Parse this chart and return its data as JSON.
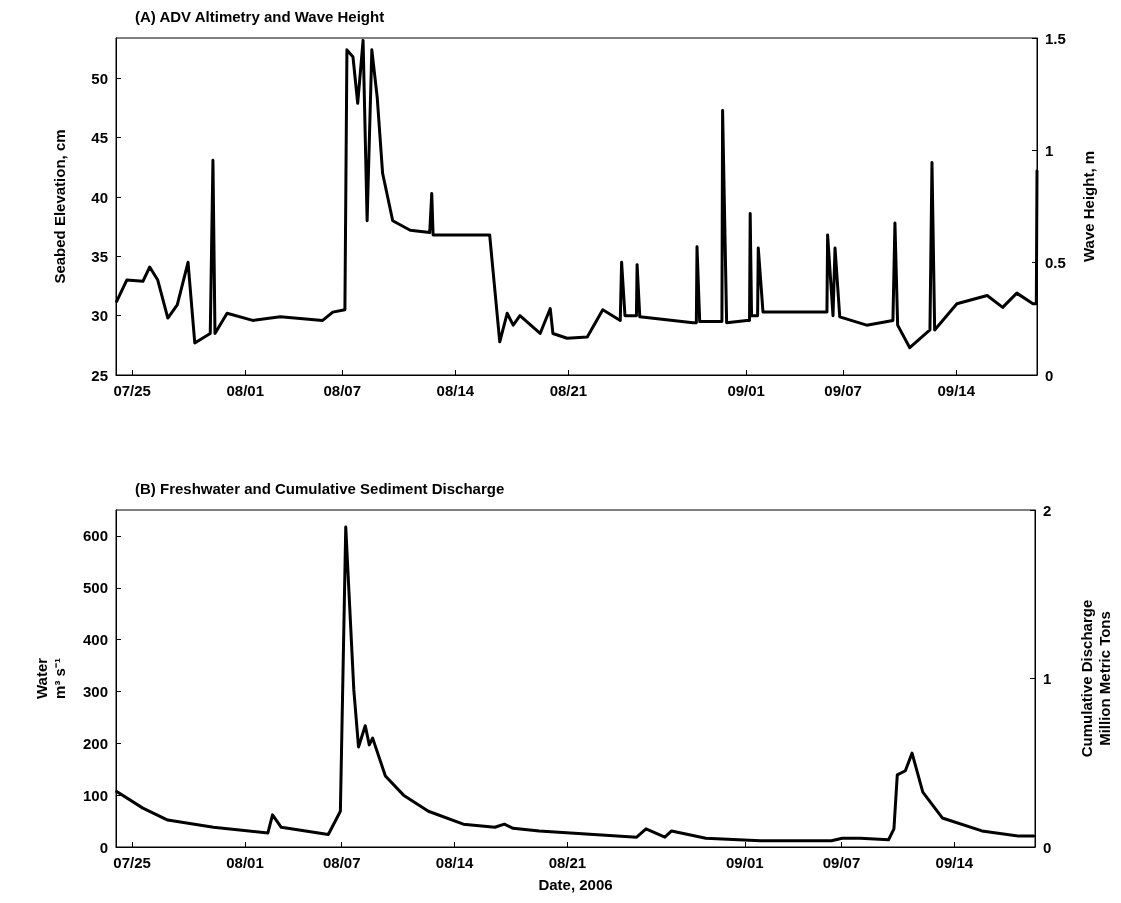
{
  "chart_data": [
    {
      "type": "line",
      "title": "(A) ADV Altimetry and Wave Height",
      "ylabel": "Seabed Elevation, cm",
      "y2label": "Wave Height, m",
      "color": "#000000",
      "line_style": "solid",
      "marker": "none",
      "xlim": [
        "2006-07-24",
        "2006-09-19"
      ],
      "xticks": [
        {
          "value": "2006-07-25",
          "label": "07/25"
        },
        {
          "value": "2006-08-01",
          "label": "08/01"
        },
        {
          "value": "2006-08-07",
          "label": "08/07"
        },
        {
          "value": "2006-08-14",
          "label": "08/14"
        },
        {
          "value": "2006-08-21",
          "label": "08/21"
        },
        {
          "value": "2006-09-01",
          "label": "09/01"
        },
        {
          "value": "2006-09-07",
          "label": "09/07"
        },
        {
          "value": "2006-09-14",
          "label": "09/14"
        }
      ],
      "ylim": [
        25,
        53.4
      ],
      "yticks": [
        25,
        30,
        35,
        40,
        45,
        50
      ],
      "y2lim": [
        0,
        1.5
      ],
      "y2ticks": [
        0,
        0.5,
        1,
        1.5
      ],
      "x": [
        "2006-07-24T01:00",
        "2006-07-24T16:00",
        "2006-07-25T16:00",
        "2006-07-26T02:00",
        "2006-07-26T14:00",
        "2006-07-27T05:00",
        "2006-07-27T19:00",
        "2006-07-28T11:00",
        "2006-07-28T21:00",
        "2006-07-29T20:00",
        "2006-07-30T00:00",
        "2006-07-30T03:00",
        "2006-07-30T21:00",
        "2006-08-01T11:00",
        "2006-08-03T04:00",
        "2006-08-05T19:00",
        "2006-08-06T10:00",
        "2006-08-07T04:00",
        "2006-08-07T07:00",
        "2006-08-07T16:00",
        "2006-08-07T23:00",
        "2006-08-08T07:00",
        "2006-08-08T13:00",
        "2006-08-08T20:00",
        "2006-08-09T04:00",
        "2006-08-09T12:00",
        "2006-08-10T03:00",
        "2006-08-11T05:00",
        "2006-08-12T10:00",
        "2006-08-12T13:00",
        "2006-08-12T15:00",
        "2006-08-16T03:00",
        "2006-08-16T18:00",
        "2006-08-17T05:00",
        "2006-08-17T14:00",
        "2006-08-18T00:00",
        "2006-08-19T06:00",
        "2006-08-19T21:00",
        "2006-08-20T01:00",
        "2006-08-20T22:00",
        "2006-08-22T04:00",
        "2006-08-23T03:00",
        "2006-08-24T05:00",
        "2006-08-24T07:00",
        "2006-08-24T12:00",
        "2006-08-25T05:00",
        "2006-08-25T06:00",
        "2006-08-25T10:00",
        "2006-08-28T17:00",
        "2006-08-28T22:00",
        "2006-08-28T23:00",
        "2006-08-29T03:00",
        "2006-08-30T12:00",
        "2006-08-30T13:00",
        "2006-08-30T19:00",
        "2006-09-01T01:00",
        "2006-09-01T05:00",
        "2006-09-01T06:00",
        "2006-09-01T08:00",
        "2006-09-01T17:00",
        "2006-09-01T18:00",
        "2006-09-02T01:00",
        "2006-09-06T00:00",
        "2006-09-06T01:00",
        "2006-09-06T09:00",
        "2006-09-06T12:00",
        "2006-09-06T19:00",
        "2006-09-08T11:00",
        "2006-09-10T02:00",
        "2006-09-10T05:00",
        "2006-09-10T09:00",
        "2006-09-11T03:00",
        "2006-09-12T09:00",
        "2006-09-12T12:00",
        "2006-09-12T16:00",
        "2006-09-14T01:00",
        "2006-09-15T22:00",
        "2006-09-16T21:00",
        "2006-09-17T18:00",
        "2006-09-18T18:00",
        "2006-09-18T23:00",
        "2006-09-19T00:00"
      ],
      "values": [
        31.2,
        33.0,
        32.9,
        34.1,
        33.0,
        29.8,
        30.9,
        34.5,
        27.7,
        28.5,
        43.1,
        28.5,
        30.2,
        29.6,
        29.9,
        29.6,
        30.3,
        30.5,
        52.4,
        51.8,
        47.9,
        53.2,
        38.0,
        52.4,
        48.4,
        42.0,
        38.0,
        37.2,
        37.0,
        40.3,
        36.8,
        36.8,
        27.8,
        30.2,
        29.2,
        30.0,
        28.5,
        30.6,
        28.5,
        28.1,
        28.2,
        30.5,
        29.6,
        34.5,
        30.0,
        30.0,
        34.3,
        29.9,
        29.4,
        29.4,
        35.8,
        29.5,
        29.5,
        47.3,
        29.4,
        29.6,
        29.6,
        38.6,
        30.0,
        30.0,
        35.7,
        30.3,
        30.3,
        36.8,
        30.0,
        35.7,
        29.9,
        29.2,
        29.6,
        37.8,
        29.2,
        27.3,
        28.8,
        42.9,
        28.8,
        31.0,
        31.7,
        30.7,
        31.9,
        31.0,
        31.0,
        42.2
      ]
    },
    {
      "type": "line",
      "title": "(B) Freshwater and Cumulative Sediment Discharge",
      "xlabel": "Date, 2006",
      "ylabel": "Water\nm³ s⁻¹",
      "y2label": "Cumulative Discharge\nMillion Metric Tons",
      "color": "#000000",
      "line_style": "solid",
      "marker": "none",
      "xlim": [
        "2006-07-24",
        "2006-09-19"
      ],
      "xticks": [
        {
          "value": "2006-07-25",
          "label": "07/25"
        },
        {
          "value": "2006-08-01",
          "label": "08/01"
        },
        {
          "value": "2006-08-07",
          "label": "08/07"
        },
        {
          "value": "2006-08-14",
          "label": "08/14"
        },
        {
          "value": "2006-08-21",
          "label": "08/21"
        },
        {
          "value": "2006-09-01",
          "label": "09/01"
        },
        {
          "value": "2006-09-07",
          "label": "09/07"
        },
        {
          "value": "2006-09-14",
          "label": "09/14"
        }
      ],
      "ylim": [
        0,
        650
      ],
      "yticks": [
        0,
        100,
        200,
        300,
        400,
        500,
        600
      ],
      "y2lim": [
        0,
        2
      ],
      "y2ticks": [
        0,
        1,
        2
      ],
      "x": [
        "2006-07-24T01:00",
        "2006-07-25T16:00",
        "2006-07-27T05:00",
        "2006-07-30T01:00",
        "2006-08-02T10:00",
        "2006-08-02T17:00",
        "2006-08-03T06:00",
        "2006-08-06T04:00",
        "2006-08-06T22:00",
        "2006-08-07T06:00",
        "2006-08-07T18:00",
        "2006-08-08T01:00",
        "2006-08-08T11:00",
        "2006-08-08T17:00",
        "2006-08-08T22:00",
        "2006-08-09T17:00",
        "2006-08-10T20:00",
        "2006-08-12T09:00",
        "2006-08-14T13:00",
        "2006-08-16T12:00",
        "2006-08-17T02:00",
        "2006-08-17T15:00",
        "2006-08-19T06:00",
        "2006-08-25T07:00",
        "2006-08-25T21:00",
        "2006-08-27T01:00",
        "2006-08-27T11:00",
        "2006-08-29T14:00",
        "2006-09-01T23:00",
        "2006-09-06T09:00",
        "2006-09-07T01:00",
        "2006-09-08T04:00",
        "2006-09-09T22:00",
        "2006-09-10T06:00",
        "2006-09-10T11:00",
        "2006-09-10T23:00",
        "2006-09-11T09:00",
        "2006-09-12T01:00",
        "2006-09-13T06:00",
        "2006-09-15T17:00",
        "2006-09-18T00:00",
        "2006-09-18T22:00"
      ],
      "values": [
        107,
        75,
        52,
        38,
        27,
        62,
        38,
        24,
        69,
        617,
        303,
        193,
        234,
        197,
        210,
        137,
        100,
        69,
        44,
        38,
        44,
        36,
        31,
        19,
        35,
        19,
        31,
        17,
        12,
        12,
        17,
        17,
        14,
        35,
        139,
        147,
        181,
        106,
        56,
        31,
        21,
        21
      ]
    }
  ]
}
